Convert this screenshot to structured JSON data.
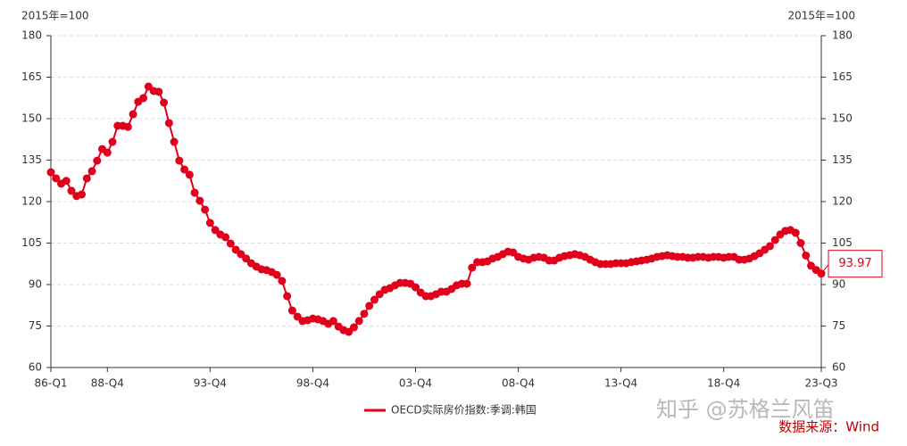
{
  "chart_data": {
    "type": "line",
    "y_label": "2015年=100",
    "y2_label": "2015年=100",
    "categories": [
      "86-Q1",
      null,
      null,
      null,
      null,
      null,
      null,
      null,
      null,
      null,
      null,
      "88-Q4",
      null,
      null,
      null,
      null,
      null,
      null,
      null,
      null,
      null,
      null,
      null,
      null,
      null,
      null,
      null,
      null,
      null,
      null,
      null,
      "93-Q4",
      null,
      null,
      null,
      null,
      null,
      null,
      null,
      null,
      null,
      null,
      null,
      null,
      null,
      null,
      null,
      null,
      null,
      null,
      null,
      "98-Q4",
      null,
      null,
      null,
      null,
      null,
      null,
      null,
      null,
      null,
      null,
      null,
      null,
      null,
      null,
      null,
      null,
      null,
      null,
      null,
      "03-Q4",
      null,
      null,
      null,
      null,
      null,
      null,
      null,
      null,
      null,
      null,
      null,
      null,
      null,
      null,
      null,
      null,
      null,
      null,
      null,
      "08-Q4",
      null,
      null,
      null,
      null,
      null,
      null,
      null,
      null,
      null,
      null,
      null,
      null,
      null,
      null,
      null,
      null,
      null,
      null,
      null,
      "13-Q4",
      null,
      null,
      null,
      null,
      null,
      null,
      null,
      null,
      null,
      null,
      null,
      null,
      null,
      null,
      null,
      null,
      null,
      null,
      null,
      "18-Q4",
      null,
      null,
      null,
      null,
      null,
      null,
      null,
      null,
      null,
      null,
      null,
      null,
      null,
      null,
      null,
      null,
      null,
      null,
      "23-Q3"
    ],
    "series": [
      {
        "name": "OECD实际房价指数:季调:韩国",
        "color": "#e0001b",
        "values": [
          130.6,
          128.4,
          126.5,
          127.5,
          123.9,
          122,
          122.6,
          128.4,
          131,
          134.8,
          139,
          137.7,
          141.6,
          147.4,
          147.4,
          147,
          151.6,
          156.1,
          157.4,
          161.6,
          160,
          159.7,
          155.8,
          148.4,
          141.6,
          134.8,
          131.6,
          129.7,
          123.2,
          120.3,
          117.1,
          112.3,
          109.7,
          108.1,
          107.1,
          104.8,
          102.6,
          101,
          99.4,
          97.7,
          96.5,
          95.5,
          95.2,
          94.5,
          93.5,
          91.3,
          85.8,
          80.6,
          78.4,
          76.8,
          77.1,
          77.7,
          77.4,
          76.8,
          75.8,
          76.8,
          74.8,
          73.5,
          72.9,
          74.5,
          76.8,
          79.4,
          82.3,
          84.5,
          86.5,
          88.1,
          88.7,
          89.7,
          90.6,
          90.6,
          90.3,
          89,
          87.1,
          85.8,
          85.8,
          86.5,
          87.4,
          87.4,
          88.4,
          89.7,
          90.3,
          90.3,
          96.1,
          98.1,
          98.1,
          98.4,
          99.4,
          100,
          101,
          101.9,
          101.6,
          100,
          99.4,
          99,
          99.7,
          100,
          99.7,
          98.7,
          98.7,
          99.7,
          100.3,
          100.6,
          101,
          100.6,
          100,
          99,
          98.1,
          97.4,
          97.4,
          97.4,
          97.7,
          97.7,
          97.7,
          98.1,
          98.4,
          98.7,
          99,
          99.4,
          100,
          100.3,
          100.6,
          100.3,
          100,
          100,
          99.7,
          99.7,
          100,
          100,
          99.7,
          100,
          100,
          99.7,
          100,
          100,
          99,
          99,
          99.4,
          100.3,
          101.3,
          102.6,
          103.9,
          106.1,
          108.1,
          109.4,
          109.7,
          108.7,
          105,
          100.5,
          96.8,
          95.3,
          93.97
        ]
      }
    ],
    "ylim": [
      60,
      180
    ],
    "yticks": [
      60,
      75,
      90,
      105,
      120,
      135,
      150,
      165,
      180
    ],
    "y2lim": [
      60,
      180
    ],
    "y2ticks": [
      60,
      75,
      90,
      105,
      120,
      135,
      150,
      165,
      180
    ],
    "grid": true,
    "watermark": "知乎 @苏格兰风笛",
    "source": "数据来源：Wind"
  }
}
